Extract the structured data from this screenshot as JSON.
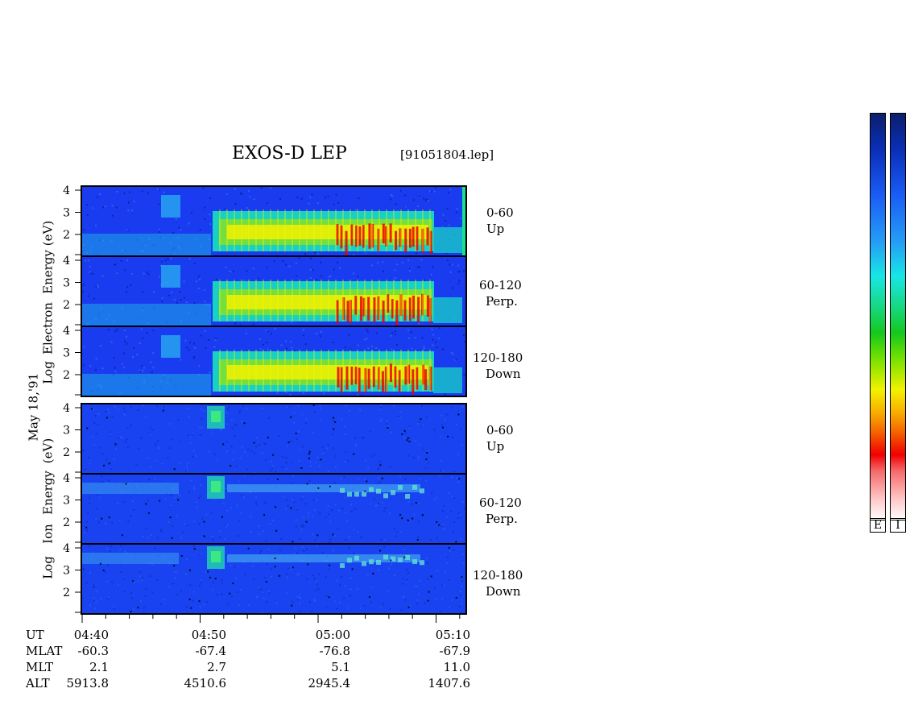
{
  "header": {
    "title": "EXOS-D LEP",
    "filename": "[91051804.lep]"
  },
  "date_label": "May 18,'91",
  "electron": {
    "axis_label_parts": [
      "Log",
      "Electron",
      "Energy",
      "(eV)"
    ],
    "panels": [
      {
        "angle": "0-60",
        "dir": "Up"
      },
      {
        "angle": "60-120",
        "dir": "Perp."
      },
      {
        "angle": "120-180",
        "dir": "Down"
      }
    ]
  },
  "ion": {
    "axis_label_parts": [
      "Log",
      "Ion",
      "Energy",
      "(eV)"
    ],
    "panels": [
      {
        "angle": "0-60",
        "dir": "Up"
      },
      {
        "angle": "60-120",
        "dir": "Perp."
      },
      {
        "angle": "120-180",
        "dir": "Down"
      }
    ]
  },
  "colorbar": {
    "labels": [
      "E",
      "I"
    ]
  },
  "chart_data": {
    "type": "heatmap",
    "title": "EXOS-D LEP",
    "ylabel": "Log Energy (eV)",
    "yticks": [
      "4",
      "3",
      "2"
    ],
    "ylim_log_ev": [
      0.7,
      4.2
    ],
    "x_ticks_ut": [
      "04:40",
      "04:50",
      "05:00",
      "05:10"
    ],
    "x_range_ut": [
      "04:39",
      "05:11"
    ],
    "ephemeris": [
      {
        "name": "UT",
        "values": [
          "04:40",
          "04:50",
          "05:00",
          "05:10"
        ]
      },
      {
        "name": "MLAT",
        "values": [
          "-60.3",
          "-67.4",
          "-76.8",
          "-67.9"
        ]
      },
      {
        "name": "MLT",
        "values": [
          "2.1",
          "2.7",
          "5.1",
          "11.0"
        ]
      },
      {
        "name": "ALT",
        "values": [
          "5913.8",
          "4510.6",
          "2945.4",
          "1407.6"
        ]
      }
    ],
    "series": [
      {
        "name": "Electron",
        "pitch_angles": [
          "0-60",
          "60-120",
          "120-180"
        ]
      },
      {
        "name": "Ion",
        "pitch_angles": [
          "0-60",
          "60-120",
          "120-180"
        ]
      }
    ],
    "colors": {
      "background": "#1a3cf0",
      "band": "#17d98a",
      "peak": "#f2f200",
      "max": "#f00000"
    }
  }
}
